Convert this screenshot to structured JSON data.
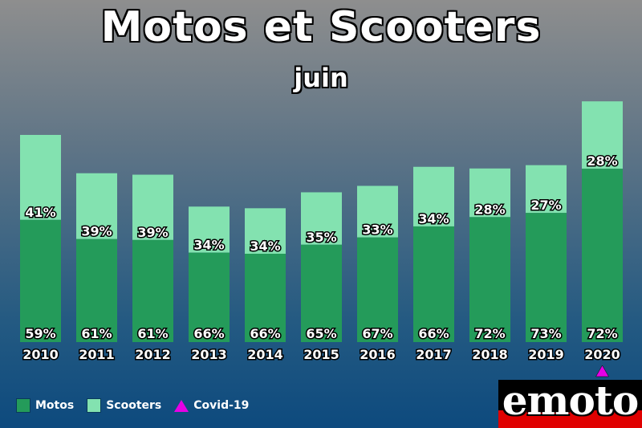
{
  "header": {
    "title": "Motos et Scooters",
    "subtitle": "juin"
  },
  "chart_data": {
    "type": "bar",
    "stacked": true,
    "categories": [
      "2010",
      "2011",
      "2012",
      "2013",
      "2014",
      "2015",
      "2016",
      "2017",
      "2018",
      "2019",
      "2020"
    ],
    "series": [
      {
        "name": "Motos",
        "color": "#249b5a",
        "labels": [
          "59%",
          "61%",
          "61%",
          "66%",
          "66%",
          "65%",
          "67%",
          "66%",
          "72%",
          "73%",
          "72%"
        ],
        "values": [
          59,
          61,
          61,
          66,
          66,
          65,
          67,
          66,
          72,
          73,
          72
        ]
      },
      {
        "name": "Scooters",
        "color": "#83e2b0",
        "labels": [
          "41%",
          "39%",
          "39%",
          "34%",
          "34%",
          "35%",
          "33%",
          "34%",
          "28%",
          "27%",
          "28%"
        ],
        "values": [
          41,
          39,
          39,
          34,
          34,
          35,
          33,
          34,
          28,
          27,
          28
        ]
      }
    ],
    "totals_relative": [
      100,
      81.5,
      80.8,
      65.4,
      64.6,
      72.3,
      75.4,
      84.6,
      83.8,
      85.4,
      116.2
    ],
    "markers": [
      {
        "category": "2020",
        "name": "Covid-19",
        "shape": "triangle",
        "color": "#e600e6"
      }
    ],
    "legend_position": "bottom-left",
    "grid": false
  },
  "legend": {
    "items": [
      {
        "label": "Motos",
        "color": "#249b5a",
        "shape": "square"
      },
      {
        "label": "Scooters",
        "color": "#83e2b0",
        "shape": "square"
      },
      {
        "label": "Covid-19",
        "color": "#e600e6",
        "shape": "triangle"
      }
    ]
  },
  "logo": {
    "text": "emoto"
  }
}
